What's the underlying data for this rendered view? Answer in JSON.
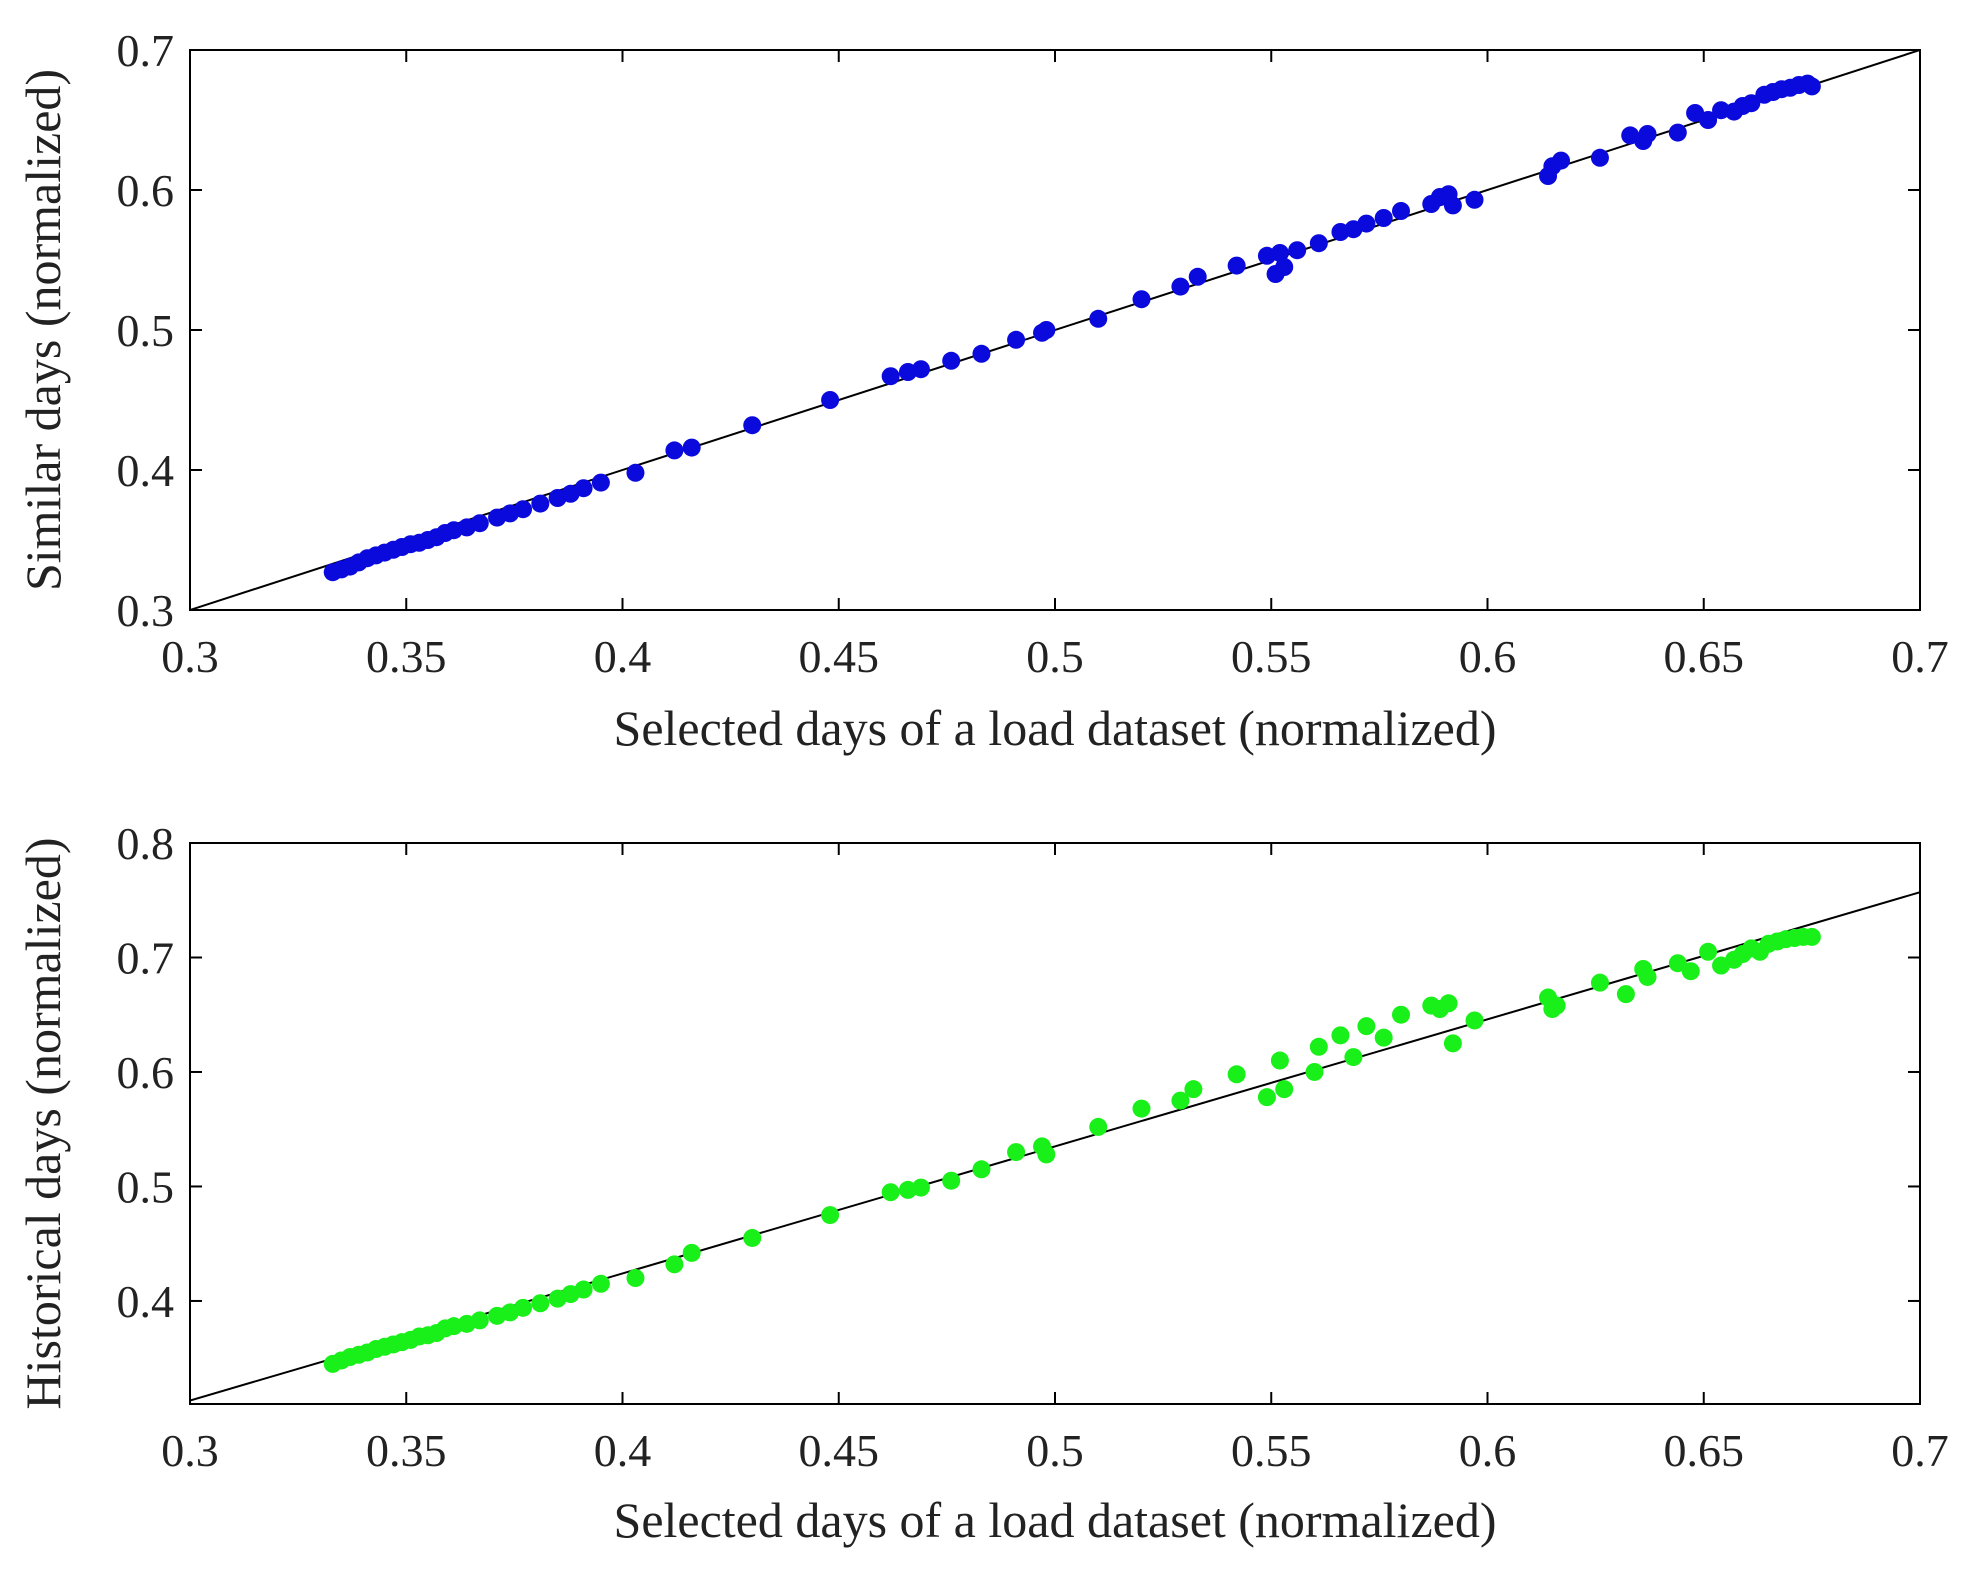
{
  "chart_data": [
    {
      "type": "scatter",
      "xlabel": "Selected days of a load dataset (normalized)",
      "ylabel": "Similar days (normalized)",
      "xlim": [
        0.3,
        0.7
      ],
      "ylim": [
        0.3,
        0.7
      ],
      "xticks": [
        0.3,
        0.35,
        0.4,
        0.45,
        0.5,
        0.55,
        0.6,
        0.65,
        0.7
      ],
      "xtick_labels": [
        "0.3",
        "0.35",
        "0.4",
        "0.45",
        "0.5",
        "0.55",
        "0.6",
        "0.65",
        "0.7"
      ],
      "yticks": [
        0.3,
        0.4,
        0.5,
        0.6,
        0.7
      ],
      "ytick_labels": [
        "0.3",
        "0.4",
        "0.5",
        "0.6",
        "0.7"
      ],
      "reference_line": {
        "slope": 1,
        "intercept": 0,
        "color": "#000000"
      },
      "series": [
        {
          "name": "Similar days",
          "color": "#0a0adc",
          "points": [
            [
              0.333,
              0.327
            ],
            [
              0.335,
              0.329
            ],
            [
              0.337,
              0.331
            ],
            [
              0.339,
              0.334
            ],
            [
              0.341,
              0.337
            ],
            [
              0.343,
              0.339
            ],
            [
              0.345,
              0.341
            ],
            [
              0.347,
              0.343
            ],
            [
              0.349,
              0.345
            ],
            [
              0.351,
              0.347
            ],
            [
              0.353,
              0.348
            ],
            [
              0.355,
              0.35
            ],
            [
              0.357,
              0.352
            ],
            [
              0.359,
              0.355
            ],
            [
              0.361,
              0.357
            ],
            [
              0.364,
              0.359
            ],
            [
              0.367,
              0.362
            ],
            [
              0.371,
              0.366
            ],
            [
              0.374,
              0.369
            ],
            [
              0.377,
              0.372
            ],
            [
              0.381,
              0.376
            ],
            [
              0.385,
              0.38
            ],
            [
              0.388,
              0.383
            ],
            [
              0.391,
              0.387
            ],
            [
              0.395,
              0.391
            ],
            [
              0.403,
              0.398
            ],
            [
              0.412,
              0.414
            ],
            [
              0.416,
              0.416
            ],
            [
              0.43,
              0.432
            ],
            [
              0.448,
              0.45
            ],
            [
              0.462,
              0.467
            ],
            [
              0.466,
              0.47
            ],
            [
              0.469,
              0.472
            ],
            [
              0.476,
              0.478
            ],
            [
              0.483,
              0.483
            ],
            [
              0.491,
              0.493
            ],
            [
              0.497,
              0.498
            ],
            [
              0.498,
              0.5
            ],
            [
              0.51,
              0.508
            ],
            [
              0.52,
              0.522
            ],
            [
              0.529,
              0.531
            ],
            [
              0.533,
              0.538
            ],
            [
              0.542,
              0.546
            ],
            [
              0.549,
              0.553
            ],
            [
              0.552,
              0.555
            ],
            [
              0.551,
              0.54
            ],
            [
              0.553,
              0.545
            ],
            [
              0.556,
              0.557
            ],
            [
              0.561,
              0.562
            ],
            [
              0.566,
              0.57
            ],
            [
              0.569,
              0.572
            ],
            [
              0.572,
              0.576
            ],
            [
              0.576,
              0.58
            ],
            [
              0.58,
              0.585
            ],
            [
              0.587,
              0.59
            ],
            [
              0.589,
              0.595
            ],
            [
              0.591,
              0.597
            ],
            [
              0.592,
              0.589
            ],
            [
              0.597,
              0.593
            ],
            [
              0.614,
              0.61
            ],
            [
              0.615,
              0.617
            ],
            [
              0.617,
              0.621
            ],
            [
              0.626,
              0.623
            ],
            [
              0.633,
              0.639
            ],
            [
              0.636,
              0.635
            ],
            [
              0.637,
              0.64
            ],
            [
              0.644,
              0.641
            ],
            [
              0.648,
              0.655
            ],
            [
              0.651,
              0.65
            ],
            [
              0.654,
              0.657
            ],
            [
              0.657,
              0.656
            ],
            [
              0.659,
              0.66
            ],
            [
              0.661,
              0.662
            ],
            [
              0.664,
              0.668
            ],
            [
              0.666,
              0.67
            ],
            [
              0.668,
              0.672
            ],
            [
              0.67,
              0.673
            ],
            [
              0.672,
              0.675
            ],
            [
              0.674,
              0.676
            ],
            [
              0.675,
              0.674
            ]
          ]
        }
      ]
    },
    {
      "type": "scatter",
      "xlabel": "Selected days of a load dataset (normalized)",
      "ylabel": "Historical days (normalized)",
      "xlim": [
        0.3,
        0.7
      ],
      "ylim": [
        0.31,
        0.8
      ],
      "xticks": [
        0.3,
        0.35,
        0.4,
        0.45,
        0.5,
        0.55,
        0.6,
        0.65,
        0.7
      ],
      "xtick_labels": [
        "0.3",
        "0.35",
        "0.4",
        "0.45",
        "0.5",
        "0.55",
        "0.6",
        "0.65",
        "0.7"
      ],
      "yticks": [
        0.4,
        0.5,
        0.6,
        0.7,
        0.8
      ],
      "ytick_labels": [
        "0.4",
        "0.5",
        "0.6",
        "0.7",
        "0.8"
      ],
      "reference_line": {
        "slope": 1.11,
        "intercept": -0.02,
        "color": "#000000"
      },
      "series": [
        {
          "name": "Historical days",
          "color": "#19f019",
          "points": [
            [
              0.333,
              0.345
            ],
            [
              0.335,
              0.348
            ],
            [
              0.337,
              0.351
            ],
            [
              0.339,
              0.353
            ],
            [
              0.341,
              0.355
            ],
            [
              0.343,
              0.358
            ],
            [
              0.345,
              0.36
            ],
            [
              0.347,
              0.362
            ],
            [
              0.349,
              0.364
            ],
            [
              0.351,
              0.366
            ],
            [
              0.353,
              0.369
            ],
            [
              0.355,
              0.37
            ],
            [
              0.357,
              0.372
            ],
            [
              0.359,
              0.376
            ],
            [
              0.361,
              0.378
            ],
            [
              0.364,
              0.38
            ],
            [
              0.367,
              0.383
            ],
            [
              0.371,
              0.387
            ],
            [
              0.374,
              0.39
            ],
            [
              0.377,
              0.394
            ],
            [
              0.381,
              0.398
            ],
            [
              0.385,
              0.402
            ],
            [
              0.388,
              0.406
            ],
            [
              0.391,
              0.41
            ],
            [
              0.395,
              0.415
            ],
            [
              0.403,
              0.42
            ],
            [
              0.412,
              0.432
            ],
            [
              0.416,
              0.442
            ],
            [
              0.43,
              0.455
            ],
            [
              0.448,
              0.475
            ],
            [
              0.462,
              0.495
            ],
            [
              0.466,
              0.497
            ],
            [
              0.469,
              0.499
            ],
            [
              0.476,
              0.505
            ],
            [
              0.483,
              0.515
            ],
            [
              0.491,
              0.53
            ],
            [
              0.497,
              0.535
            ],
            [
              0.498,
              0.528
            ],
            [
              0.51,
              0.552
            ],
            [
              0.52,
              0.568
            ],
            [
              0.529,
              0.575
            ],
            [
              0.532,
              0.585
            ],
            [
              0.542,
              0.598
            ],
            [
              0.549,
              0.578
            ],
            [
              0.552,
              0.61
            ],
            [
              0.553,
              0.585
            ],
            [
              0.56,
              0.6
            ],
            [
              0.561,
              0.622
            ],
            [
              0.566,
              0.632
            ],
            [
              0.569,
              0.613
            ],
            [
              0.572,
              0.64
            ],
            [
              0.576,
              0.63
            ],
            [
              0.58,
              0.65
            ],
            [
              0.587,
              0.658
            ],
            [
              0.589,
              0.655
            ],
            [
              0.591,
              0.66
            ],
            [
              0.592,
              0.625
            ],
            [
              0.597,
              0.645
            ],
            [
              0.614,
              0.665
            ],
            [
              0.615,
              0.655
            ],
            [
              0.616,
              0.658
            ],
            [
              0.626,
              0.678
            ],
            [
              0.632,
              0.668
            ],
            [
              0.636,
              0.69
            ],
            [
              0.637,
              0.683
            ],
            [
              0.644,
              0.695
            ],
            [
              0.647,
              0.688
            ],
            [
              0.651,
              0.705
            ],
            [
              0.654,
              0.693
            ],
            [
              0.657,
              0.698
            ],
            [
              0.659,
              0.703
            ],
            [
              0.661,
              0.708
            ],
            [
              0.663,
              0.705
            ],
            [
              0.665,
              0.712
            ],
            [
              0.667,
              0.714
            ],
            [
              0.669,
              0.716
            ],
            [
              0.671,
              0.717
            ],
            [
              0.673,
              0.718
            ],
            [
              0.675,
              0.718
            ]
          ]
        }
      ]
    }
  ]
}
